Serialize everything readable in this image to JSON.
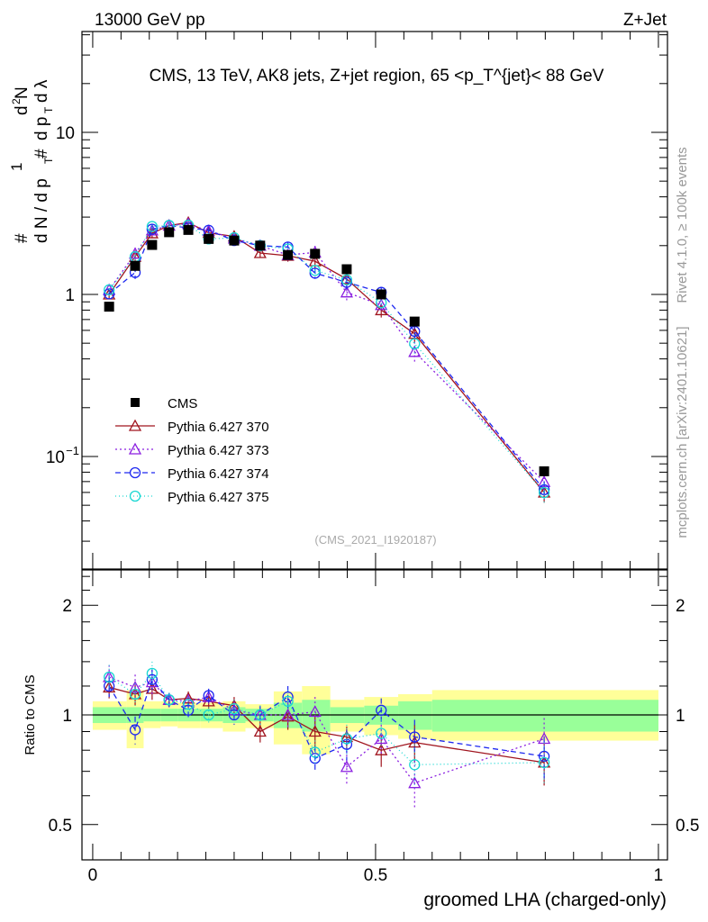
{
  "header": {
    "left": "13000 GeV pp",
    "right": "Z+Jet"
  },
  "side": {
    "rivet": "Rivet 4.1.0, ≥ 100k events",
    "mcplots": "mcplots.cern.ch [arXiv:2401.10621]"
  },
  "chart_data": [
    {
      "type": "scatter",
      "title": "CMS, 13 TeV, AK8 jets, Z+jet region, 65 <p_T^{jet}< 88 GeV",
      "ylabel": "1/(dN/dp_T) d²N/(dp_T dλ)",
      "ylabel_parts": {
        "a": "#",
        "b": "1",
        "c": "d N / d p",
        "d": "T",
        "e": "#",
        "f": "d",
        "g": "2",
        "h": "N",
        "i": "d p",
        "j": "T",
        "k": "d λ"
      },
      "yscale": "log",
      "ylim": [
        0.0202,
        41.9
      ],
      "xlim": [
        -0.019,
        1.016
      ],
      "yticks": [
        {
          "v": 0.1,
          "base": "10",
          "exp": "−1"
        },
        {
          "v": 1,
          "base": "1",
          "exp": ""
        },
        {
          "v": 10,
          "base": "10",
          "exp": ""
        }
      ],
      "watermark": "(CMS_2021_I1920187)",
      "legend_position": "lower-left",
      "x": [
        0.029,
        0.075,
        0.105,
        0.135,
        0.169,
        0.205,
        0.25,
        0.296,
        0.345,
        0.393,
        0.449,
        0.51,
        0.569,
        0.798
      ],
      "data": {
        "name": "CMS",
        "values": [
          0.84,
          1.5,
          2.02,
          2.42,
          2.5,
          2.2,
          2.15,
          2.0,
          1.75,
          1.78,
          1.43,
          1.0,
          0.68,
          0.081
        ]
      },
      "note": "model values = data × ratio (see ratio panel)"
    },
    {
      "type": "line",
      "ylabel": "Ratio to CMS",
      "xlabel": "groomed LHA (charged-only)",
      "yscale": "log",
      "ylim": [
        0.4,
        2.5
      ],
      "xlim": [
        -0.019,
        1.016
      ],
      "yticks": [
        {
          "v": 0.5,
          "label": "0.5"
        },
        {
          "v": 1,
          "label": "1"
        },
        {
          "v": 2,
          "label": "2"
        }
      ],
      "xticks": [
        {
          "v": 0,
          "label": "0"
        },
        {
          "v": 0.5,
          "label": "0.5"
        },
        {
          "v": 1,
          "label": "1"
        }
      ],
      "bin_edges": [
        0,
        0.06,
        0.09,
        0.12,
        0.15,
        0.19,
        0.23,
        0.27,
        0.32,
        0.37,
        0.42,
        0.48,
        0.54,
        0.6,
        1.0
      ],
      "band_yellow": [
        [
          0.09,
          0.09
        ],
        [
          0.17,
          0.19
        ],
        [
          0.09,
          0.08
        ],
        [
          0.09,
          0.07
        ],
        [
          0.08,
          0.08
        ],
        [
          0.08,
          0.08
        ],
        [
          0.09,
          0.1
        ],
        [
          0.07,
          0.08
        ],
        [
          0.16,
          0.17
        ],
        [
          0.2,
          0.22
        ],
        [
          0.1,
          0.1
        ],
        [
          0.12,
          0.12
        ],
        [
          0.14,
          0.14
        ],
        [
          0.17,
          0.15
        ]
      ],
      "band_green": [
        [
          0.05,
          0.05
        ],
        [
          0.05,
          0.05
        ],
        [
          0.04,
          0.04
        ],
        [
          0.04,
          0.04
        ],
        [
          0.04,
          0.04
        ],
        [
          0.04,
          0.04
        ],
        [
          0.05,
          0.05
        ],
        [
          0.04,
          0.04
        ],
        [
          0.08,
          0.08
        ],
        [
          0.1,
          0.1
        ],
        [
          0.05,
          0.05
        ],
        [
          0.06,
          0.06
        ],
        [
          0.09,
          0.09
        ],
        [
          0.1,
          0.1
        ]
      ],
      "series": [
        {
          "name": "Pythia 6.427 370",
          "color": "#a0141e",
          "marker": "triangle",
          "dash": "",
          "ratio": [
            1.19,
            1.14,
            1.18,
            1.1,
            1.11,
            1.09,
            1.06,
            0.9,
            0.99,
            0.9,
            0.87,
            0.8,
            0.84,
            0.74
          ],
          "err": [
            0.08,
            0.08,
            0.08,
            0.05,
            0.05,
            0.05,
            0.06,
            0.06,
            0.08,
            0.1,
            0.06,
            0.08,
            0.1,
            0.1
          ]
        },
        {
          "name": "Pythia 6.427 373",
          "color": "#8a1ee0",
          "marker": "triangle",
          "dash": "2,3",
          "ratio": [
            1.27,
            1.19,
            1.23,
            1.1,
            1.09,
            1.12,
            1.03,
            1.0,
            1.0,
            1.02,
            0.72,
            0.86,
            0.65,
            0.86
          ],
          "err": [
            0.1,
            0.1,
            0.1,
            0.05,
            0.05,
            0.05,
            0.06,
            0.06,
            0.08,
            0.1,
            0.08,
            0.08,
            0.1,
            0.12
          ]
        },
        {
          "name": "Pythia 6.427 374",
          "color": "#1e28f0",
          "marker": "circle",
          "dash": "6,4",
          "ratio": [
            1.2,
            0.91,
            1.25,
            1.1,
            1.03,
            1.13,
            1.0,
            1.0,
            1.12,
            0.76,
            0.83,
            1.03,
            0.87,
            0.77
          ],
          "err": [
            0.08,
            0.08,
            0.08,
            0.05,
            0.05,
            0.05,
            0.06,
            0.06,
            0.08,
            0.06,
            0.08,
            0.08,
            0.1,
            0.1
          ]
        },
        {
          "name": "Pythia 6.427 375",
          "color": "#19d7d2",
          "marker": "circle",
          "dash": "1,3",
          "ratio": [
            1.27,
            1.14,
            1.3,
            1.1,
            1.07,
            1.0,
            1.04,
            1.0,
            1.09,
            0.79,
            0.86,
            0.89,
            0.73,
            0.74
          ],
          "err": [
            0.1,
            0.08,
            0.1,
            0.05,
            0.05,
            0.05,
            0.06,
            0.06,
            0.08,
            0.06,
            0.08,
            0.08,
            0.1,
            0.1
          ]
        }
      ]
    }
  ]
}
